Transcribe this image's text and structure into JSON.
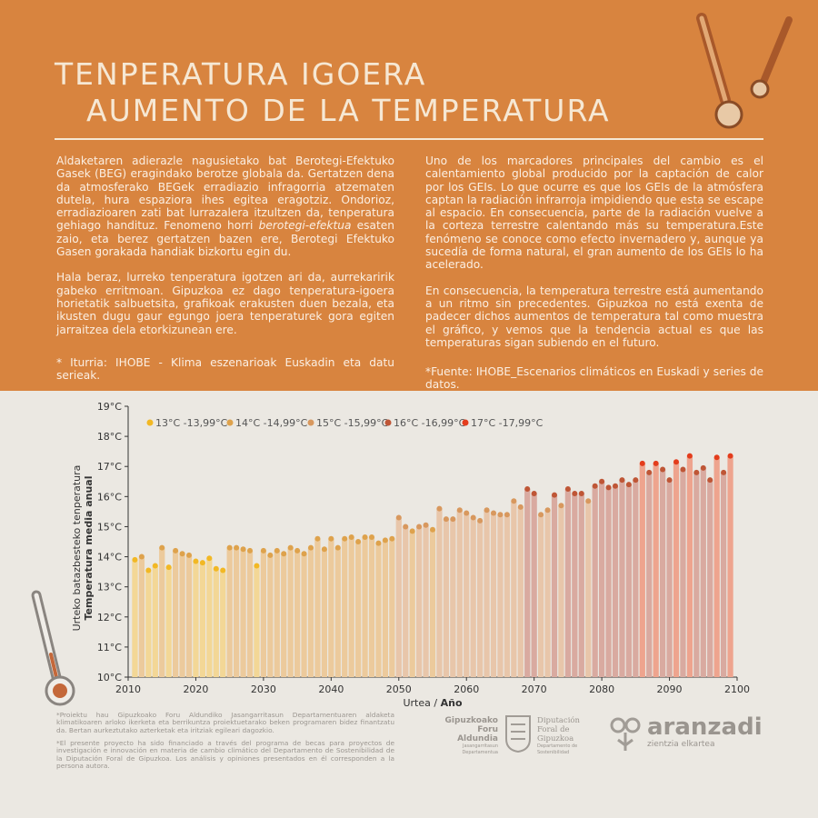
{
  "header": {
    "title_line1": "TENPERATURA IGOERA",
    "title_line2": "AUMENTO DE LA TEMPERATURA"
  },
  "left": {
    "paragraph1": [
      "Aldaketaren adierazle nagusietako bat Berotegi-Efektuko Gasek (BEG) eragindako berotze globala da. Gertatzen dena da atmosferako BEGek erradiazio infragorria atzematen dutela, hura espaziora ihes egitea eragotziz. Ondorioz, erradiazioaren zati bat lurrazalera itzultzen da, tenperatura gehiago handituz. Fenomeno horri ",
      "berotegi-efektua",
      " esaten zaio, eta berez gertatzen bazen ere, Berotegi Efektuko Gasen gorakada handiak bizkortu egin du."
    ],
    "paragraph2": "Hala beraz, lurreko tenperatura igotzen ari da, aurrekaririk gabeko erritmoan. Gipuzkoa ez dago tenperatura-igoera horietatik salbuetsita, grafikoak erakusten duen bezala, eta ikusten dugu gaur egungo joera tenperaturek gora egiten jarraitzea dela etorkizunean ere.",
    "source": "* Iturria: IHOBE - Klima eszenarioak Euskadin eta datu serieak."
  },
  "right": {
    "paragraph1": "Uno de los marcadores principales del cambio es el calentamiento global producido por la captación de calor por los GEIs. Lo que ocurre es que los GEIs de la atmósfera captan la radiación infrarroja impidiendo que esta se escape al espacio. En consecuencia, parte de la radiación vuelve a la corteza terrestre calentando más su temperatura.Este fenómeno se conoce como efecto invernadero y, aunque ya sucedía de forma natural, el gran aumento de los GEIs lo ha acelerado.",
    "paragraph2": "En consecuencia, la temperatura terrestre está aumentando a un ritmo sin precedentes. Gipuzkoa no está exenta de padecer dichos aumentos de temperatura tal como muestra el gráfico, y vemos que la tendencia actual es que las temperaturas sigan subiendo en el futuro.",
    "source": "*Fuente: IHOBE_Escenarios climáticos en Euskadi y series de datos."
  },
  "chart_data": {
    "type": "bar",
    "ylabel_eu": "Urteko batazbesteko tenperatura",
    "ylabel_es": "Temperatura media anual",
    "xlabel_eu": "Urtea / ",
    "xlabel_es": "Año",
    "bands": [
      {
        "label": "13°C -13,99°C",
        "min": 13,
        "color": "#f2b824",
        "bar_color": "#f3d796"
      },
      {
        "label": "14°C -14,99°C",
        "min": 14,
        "color": "#dea24c",
        "bar_color": "#ecca9c"
      },
      {
        "label": "15°C -15,99°C",
        "min": 15,
        "color": "#d8985e",
        "bar_color": "#e8c6aa"
      },
      {
        "label": "16°C -16,99°C",
        "min": 16,
        "color": "#bf5636",
        "bar_color": "#d9aaa0"
      },
      {
        "label": "17°C -17,99°C",
        "min": 17,
        "color": "#e33c1c",
        "bar_color": "#eea48e"
      }
    ],
    "x": [
      2011,
      2012,
      2013,
      2014,
      2015,
      2016,
      2017,
      2018,
      2019,
      2020,
      2021,
      2022,
      2023,
      2024,
      2025,
      2026,
      2027,
      2028,
      2029,
      2030,
      2031,
      2032,
      2033,
      2034,
      2035,
      2036,
      2037,
      2038,
      2039,
      2040,
      2041,
      2042,
      2043,
      2044,
      2045,
      2046,
      2047,
      2048,
      2049,
      2050,
      2051,
      2052,
      2053,
      2054,
      2055,
      2056,
      2057,
      2058,
      2059,
      2060,
      2061,
      2062,
      2063,
      2064,
      2065,
      2066,
      2067,
      2068,
      2069,
      2070,
      2071,
      2072,
      2073,
      2074,
      2075,
      2076,
      2077,
      2078,
      2079,
      2080,
      2081,
      2082,
      2083,
      2084,
      2085,
      2086,
      2087,
      2088,
      2089,
      2090,
      2091,
      2092,
      2093,
      2094,
      2095,
      2096,
      2097,
      2098,
      2099
    ],
    "values": [
      13.9,
      14.0,
      13.55,
      13.7,
      14.3,
      13.65,
      14.2,
      14.1,
      14.05,
      13.85,
      13.8,
      13.95,
      13.6,
      13.55,
      14.3,
      14.3,
      14.25,
      14.2,
      13.7,
      14.2,
      14.05,
      14.2,
      14.1,
      14.3,
      14.2,
      14.1,
      14.3,
      14.6,
      14.25,
      14.6,
      14.3,
      14.6,
      14.65,
      14.5,
      14.65,
      14.65,
      14.45,
      14.55,
      14.6,
      15.3,
      15.0,
      14.85,
      15.0,
      15.05,
      14.9,
      15.6,
      15.25,
      15.25,
      15.55,
      15.45,
      15.3,
      15.2,
      15.55,
      15.45,
      15.4,
      15.4,
      15.85,
      15.65,
      16.25,
      16.1,
      15.4,
      15.55,
      16.05,
      15.7,
      16.25,
      16.1,
      16.1,
      15.85,
      16.35,
      16.5,
      16.3,
      16.35,
      16.55,
      16.4,
      16.55,
      17.1,
      16.8,
      17.1,
      16.9,
      16.55,
      17.15,
      16.9,
      17.35,
      16.8,
      16.95,
      16.55,
      17.3,
      16.8,
      17.35
    ],
    "xlim": [
      2010,
      2100
    ],
    "xticks": [
      2010,
      2020,
      2030,
      2040,
      2050,
      2060,
      2070,
      2080,
      2090,
      2100
    ],
    "ylim": [
      10,
      19
    ],
    "yticks": [
      {
        "value": 10,
        "label": "10°C"
      },
      {
        "value": 11,
        "label": "11°C"
      },
      {
        "value": 12,
        "label": "12°C"
      },
      {
        "value": 13,
        "label": "13°C"
      },
      {
        "value": 14,
        "label": "14°C"
      },
      {
        "value": 15,
        "label": "15°C"
      },
      {
        "value": 16,
        "label": "16°C"
      },
      {
        "value": 17,
        "label": "17°C"
      },
      {
        "value": 18,
        "label": "18°C"
      },
      {
        "value": 19,
        "label": "19°C"
      }
    ],
    "grid": false
  },
  "footer": {
    "note_eu": "*Proiektu hau Gipuzkoako Foru Aldundiko Jasangarritasun Departamentuaren aldaketa klimatikoaren arloko ikerketa eta berrikuntza proiektuetarako beken programaren bidez finantzatu da. Bertan aurkeztutako azterketak eta iritziak egileari dagozkio.",
    "note_es": "*El presente proyecto ha sido financiado a través del programa de becas para proyectos de investigación e innovación en materia de cambio climático del Departamento de Sostenibilidad de la Diputación Foral de Gipuzkoa. Los análisis y opiniones presentados en él corresponden a la persona autora.",
    "logo1_name": "Gipuzkoako Foru Aldundia",
    "logo1_dept": "Jasangarritasun Departamentua",
    "logo2_name": "Diputación Foral de Gipuzkoa",
    "logo2_dept": "Departamento de Sostenibilidad",
    "logo3_name": "aranzadi",
    "logo3_sub": "zientzia elkartea"
  }
}
